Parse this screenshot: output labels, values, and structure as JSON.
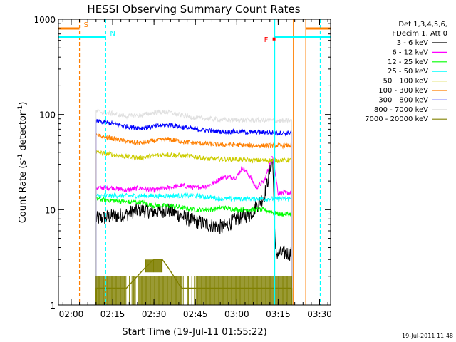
{
  "chart_data": {
    "type": "line",
    "title": "HESSI Observing Summary Count Rates",
    "xlabel": "Start Time (19-Jul-11 01:55:22)",
    "ylabel_parts": [
      "Count Rate (s",
      "-1",
      " detector",
      "-1",
      ")"
    ],
    "ylabel": "Count Rate (s-1 detector-1)",
    "yscale": "log",
    "ylim": [
      1,
      1000
    ],
    "xlim": [
      "01:55:22",
      "03:34:00"
    ],
    "x_ticks": [
      "02:00",
      "02:15",
      "02:30",
      "02:45",
      "03:00",
      "03:15",
      "03:30"
    ],
    "y_ticks": [
      "1",
      "10",
      "100",
      "1000"
    ],
    "grid": false,
    "legend_header": [
      "Det 1,3,4,5,6,",
      "FDecim 1, Att 0"
    ],
    "legend_position": "right",
    "timestamp": "19-Jul-2011 11:48",
    "data_window": [
      "02:09:00",
      "03:20:00"
    ],
    "series": [
      {
        "name": "3 - 6 keV",
        "color": "#000000",
        "x": [
          "02:09",
          "02:15",
          "02:20",
          "02:25",
          "02:30",
          "02:35",
          "02:40",
          "02:45",
          "02:50",
          "02:55",
          "03:00",
          "03:05",
          "03:10",
          "03:13",
          "03:14",
          "03:15",
          "03:20"
        ],
        "y": [
          8,
          8.5,
          9,
          10,
          9.5,
          10,
          8.5,
          7.5,
          7,
          6.5,
          8,
          9,
          14,
          35,
          3.5,
          3.5,
          3.5
        ]
      },
      {
        "name": "6 - 12 keV",
        "color": "#ff00ff",
        "x": [
          "02:09",
          "02:15",
          "02:20",
          "02:25",
          "02:30",
          "02:35",
          "02:40",
          "02:45",
          "02:50",
          "02:55",
          "03:00",
          "03:02",
          "03:05",
          "03:07",
          "03:10",
          "03:13",
          "03:15",
          "03:20"
        ],
        "y": [
          17,
          17,
          16,
          17,
          16,
          17,
          18,
          17,
          18,
          22,
          22,
          28,
          22,
          17,
          20,
          38,
          15,
          15
        ]
      },
      {
        "name": "12 - 25 keV",
        "color": "#00ff00",
        "x": [
          "02:09",
          "02:15",
          "02:20",
          "02:25",
          "02:30",
          "02:35",
          "02:40",
          "02:45",
          "02:50",
          "02:55",
          "03:00",
          "03:05",
          "03:10",
          "03:15",
          "03:20"
        ],
        "y": [
          13,
          12.5,
          12,
          12,
          11,
          11,
          10.5,
          10,
          10,
          10.5,
          10,
          10,
          10,
          9,
          9
        ]
      },
      {
        "name": "25 - 50 keV",
        "color": "#00ffff",
        "x": [
          "02:09",
          "02:15",
          "02:20",
          "02:25",
          "02:30",
          "02:35",
          "02:40",
          "02:45",
          "02:50",
          "02:55",
          "03:00",
          "03:05",
          "03:10",
          "03:15",
          "03:20"
        ],
        "y": [
          14,
          14,
          14,
          14,
          14,
          14,
          14,
          14,
          13.5,
          13,
          13,
          13,
          13,
          13,
          13
        ]
      },
      {
        "name": "50 - 100 keV",
        "color": "#cccc00",
        "x": [
          "02:09",
          "02:15",
          "02:20",
          "02:25",
          "02:30",
          "02:35",
          "02:40",
          "02:45",
          "02:50",
          "02:55",
          "03:00",
          "03:05",
          "03:10",
          "03:15",
          "03:20"
        ],
        "y": [
          40,
          38,
          36,
          35,
          37,
          38,
          37,
          36,
          34,
          34,
          34,
          33,
          33,
          33,
          33
        ]
      },
      {
        "name": "100 - 300 keV",
        "color": "#ff7f00",
        "x": [
          "02:09",
          "02:15",
          "02:20",
          "02:25",
          "02:30",
          "02:35",
          "02:40",
          "02:45",
          "02:50",
          "02:55",
          "03:00",
          "03:05",
          "03:10",
          "03:15",
          "03:20"
        ],
        "y": [
          60,
          56,
          52,
          50,
          53,
          55,
          52,
          50,
          49,
          48,
          48,
          47,
          47,
          47,
          47
        ]
      },
      {
        "name": "300 - 800 keV",
        "color": "#0000ff",
        "x": [
          "02:09",
          "02:15",
          "02:20",
          "02:25",
          "02:30",
          "02:35",
          "02:40",
          "02:45",
          "02:50",
          "02:55",
          "03:00",
          "03:05",
          "03:10",
          "03:15",
          "03:20"
        ],
        "y": [
          85,
          80,
          75,
          72,
          75,
          78,
          74,
          70,
          68,
          66,
          66,
          65,
          65,
          64,
          64
        ]
      },
      {
        "name": "800 - 7000 keV",
        "color": "#e0e0e0",
        "x": [
          "02:09",
          "02:15",
          "02:20",
          "02:25",
          "02:30",
          "02:35",
          "02:40",
          "02:45",
          "02:50",
          "02:55",
          "03:00",
          "03:05",
          "03:10",
          "03:15",
          "03:20"
        ],
        "y": [
          108,
          102,
          96,
          98,
          105,
          106,
          98,
          92,
          90,
          88,
          88,
          87,
          87,
          86,
          86
        ]
      },
      {
        "name": "7000 - 20000 keV",
        "color": "#808000",
        "x": [
          "02:09",
          "02:20",
          "02:27",
          "02:30",
          "02:33",
          "02:35",
          "02:40",
          "02:45",
          "03:10",
          "03:20"
        ],
        "y": [
          1.5,
          1.5,
          2.5,
          3,
          3,
          2.5,
          1.5,
          1.5,
          1.5,
          1.5
        ]
      }
    ],
    "annotations": [
      {
        "label": "S",
        "color": "#ff7f00",
        "x": "02:03:00",
        "bar_from": "01:55:22",
        "bar_to": "02:03:00",
        "level": 800
      },
      {
        "label": "N",
        "color": "#00ffff",
        "x": "02:12:30",
        "bar_from": "01:55:22",
        "bar_to": "02:12:30",
        "level": 650
      },
      {
        "label": "F",
        "color": "#ff0000",
        "x": "03:13:30",
        "level": 620
      }
    ],
    "vertical_lines": [
      {
        "x": "02:03:00",
        "color": "#ff7f00",
        "style": "dashed"
      },
      {
        "x": "02:12:30",
        "color": "#00ffff",
        "style": "dashed"
      },
      {
        "x": "03:13:45",
        "color": "#00ffff",
        "style": "solid"
      },
      {
        "x": "03:20:30",
        "color": "#ff7f00",
        "style": "solid"
      },
      {
        "x": "03:25:00",
        "color": "#ff7f00",
        "style": "solid"
      },
      {
        "x": "03:30:15",
        "color": "#00ffff",
        "style": "dashed"
      }
    ],
    "right_bars": [
      {
        "color": "#00ffff",
        "from": "03:13:45",
        "to": "03:34:00",
        "level": 650
      },
      {
        "color": "#ff7f00",
        "from": "03:25:00",
        "to": "03:34:00",
        "level": 800
      }
    ]
  }
}
